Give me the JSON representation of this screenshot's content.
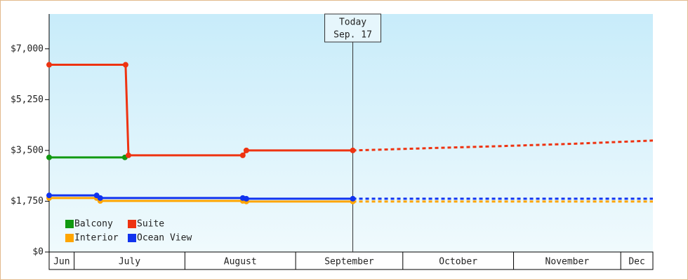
{
  "chart_data": {
    "type": "line",
    "annotation": {
      "x": 78,
      "title": "Today",
      "date": "Sep. 17"
    },
    "xlim": [
      -7,
      162
    ],
    "xticks": [
      {
        "value": -30,
        "label": "Jun"
      },
      {
        "value": 0,
        "label": "July"
      },
      {
        "value": 31,
        "label": "August"
      },
      {
        "value": 62,
        "label": "September"
      },
      {
        "value": 92,
        "label": "October"
      },
      {
        "value": 123,
        "label": "November"
      },
      {
        "value": 153,
        "label": "Dec"
      }
    ],
    "ylim": [
      0,
      8200
    ],
    "yticks": [
      {
        "value": 0,
        "label": "$0"
      },
      {
        "value": 1750,
        "label": "$1,750"
      },
      {
        "value": 3500,
        "label": "$3,500"
      },
      {
        "value": 5250,
        "label": "$5,250"
      },
      {
        "value": 7000,
        "label": "$7,000"
      }
    ],
    "legend": "lower left",
    "series": [
      {
        "name": "Balcony",
        "color": "#119911",
        "x": [
          -7,
          14.2
        ],
        "values": [
          3260,
          3260
        ]
      },
      {
        "name": "Suite",
        "color": "#ee3311",
        "x": [
          -7,
          14.4,
          15.2,
          47.2,
          48.2,
          78
        ],
        "values": [
          6450,
          6450,
          3330,
          3330,
          3500,
          3500
        ],
        "forecast": {
          "x": [
            78,
            84,
            100,
            120,
            140,
            162
          ],
          "values": [
            3500,
            3520,
            3580,
            3650,
            3730,
            3840
          ]
        }
      },
      {
        "name": "Interior",
        "color": "#ffa500",
        "x": [
          -7,
          6.3,
          7.3,
          47.2,
          48.2,
          78
        ],
        "values": [
          1860,
          1860,
          1760,
          1760,
          1740,
          1740
        ],
        "forecast": {
          "x": [
            78,
            162
          ],
          "values": [
            1740,
            1740
          ]
        }
      },
      {
        "name": "Ocean View",
        "color": "#1133ee",
        "x": [
          -7,
          6.3,
          7.3,
          47.2,
          48.2,
          78
        ],
        "values": [
          1950,
          1950,
          1860,
          1860,
          1835,
          1835
        ],
        "forecast": {
          "x": [
            78,
            162
          ],
          "values": [
            1835,
            1835
          ]
        }
      }
    ]
  }
}
